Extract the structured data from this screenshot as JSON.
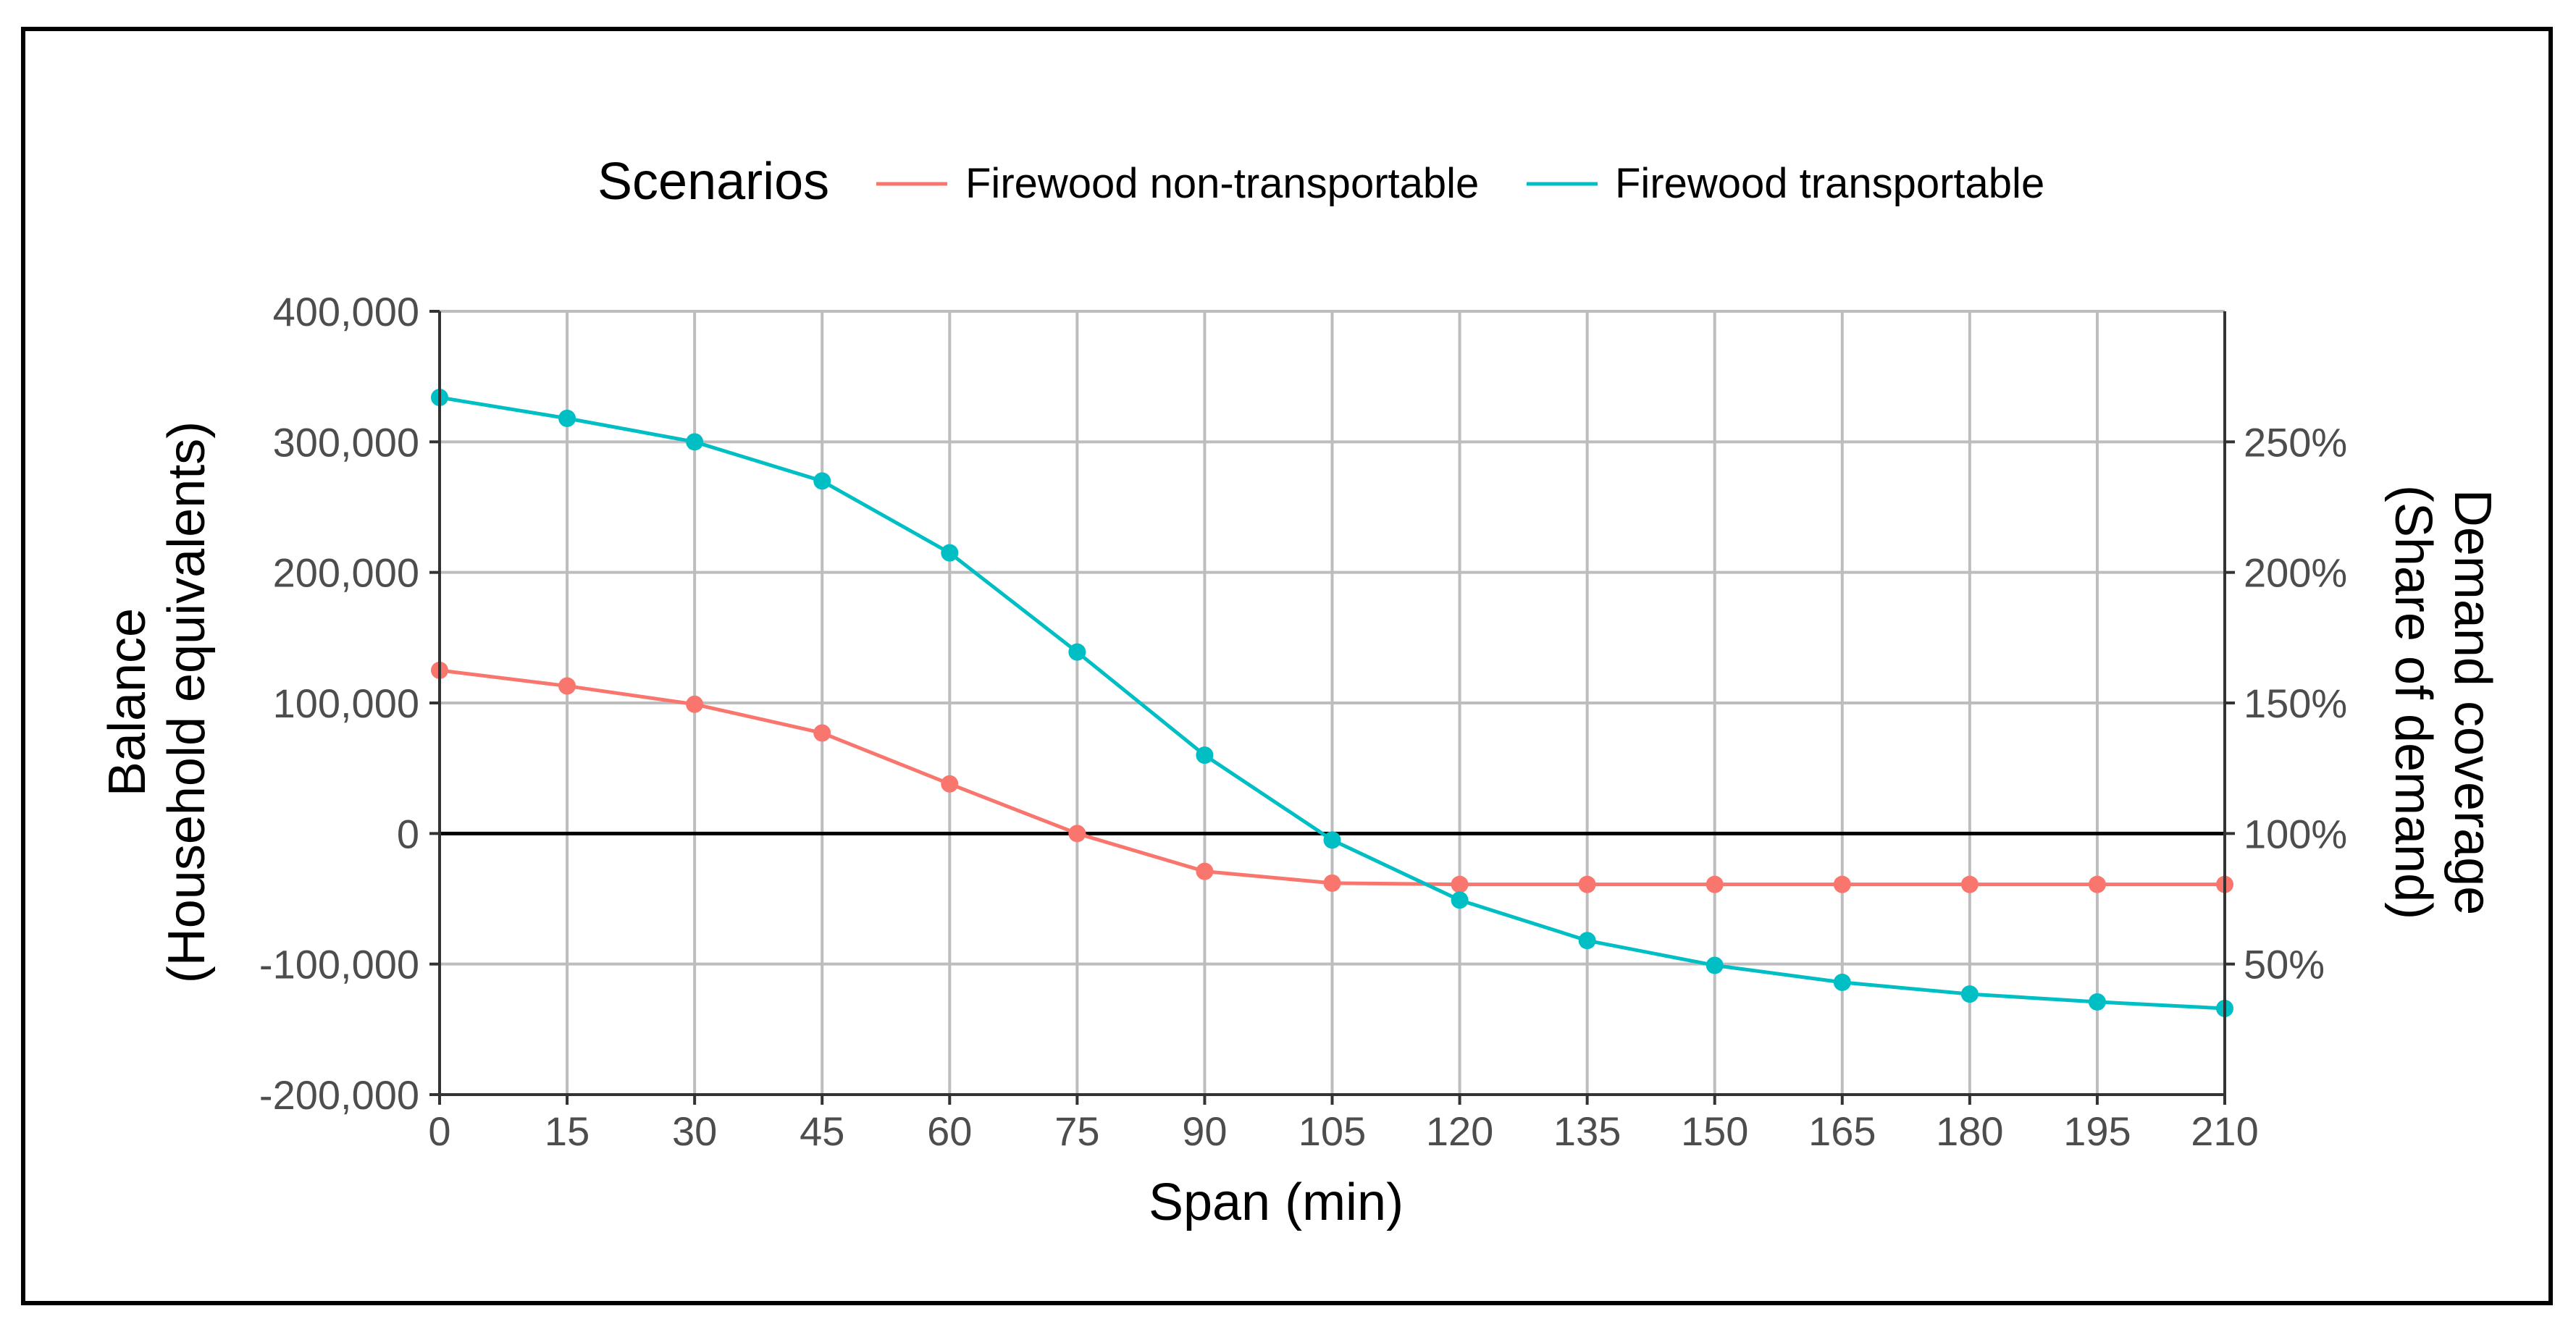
{
  "chart_data": {
    "type": "line",
    "xlabel": "Span (min)",
    "ylabel_line1": "Balance",
    "ylabel_line2": "(Household equivalents)",
    "y2label_line1": "Demand coverage",
    "y2label_line2": "(Share of demand)",
    "legend": {
      "title": "Scenarios",
      "position": "top"
    },
    "xlim": [
      0,
      210
    ],
    "ylim": [
      -200000,
      400000
    ],
    "x_ticks": [
      0,
      15,
      30,
      45,
      60,
      75,
      90,
      105,
      120,
      135,
      150,
      165,
      180,
      195,
      210
    ],
    "x_tick_labels": [
      "0",
      "15",
      "30",
      "45",
      "60",
      "75",
      "90",
      "105",
      "120",
      "135",
      "150",
      "165",
      "180",
      "195",
      "210"
    ],
    "y_ticks": [
      -200000,
      -100000,
      0,
      100000,
      200000,
      300000,
      400000
    ],
    "y_tick_labels": [
      "-200,000",
      "-100,000",
      "0",
      "100,000",
      "200,000",
      "300,000",
      "400,000"
    ],
    "y2_ticks": [
      -100000,
      0,
      100000,
      200000,
      300000
    ],
    "y2_tick_labels": [
      "50%",
      "100%",
      "150%",
      "200%",
      "250%"
    ],
    "grid": true,
    "zero_line": true,
    "x": [
      0,
      15,
      30,
      45,
      60,
      75,
      90,
      105,
      120,
      135,
      150,
      165,
      180,
      195,
      210
    ],
    "series": [
      {
        "name": "Firewood non-transportable",
        "color": "#F8766D",
        "values": [
          125000,
          113000,
          99000,
          77000,
          38000,
          0,
          -29000,
          -38000,
          -39000,
          -39000,
          -39000,
          -39000,
          -39000,
          -39000,
          -39000
        ]
      },
      {
        "name": "Firewood transportable",
        "color": "#00BFC4",
        "values": [
          334000,
          318000,
          300000,
          270000,
          215000,
          139000,
          60000,
          -5000,
          -51000,
          -82000,
          -101000,
          -114000,
          -123000,
          -129000,
          -134000
        ]
      }
    ]
  }
}
